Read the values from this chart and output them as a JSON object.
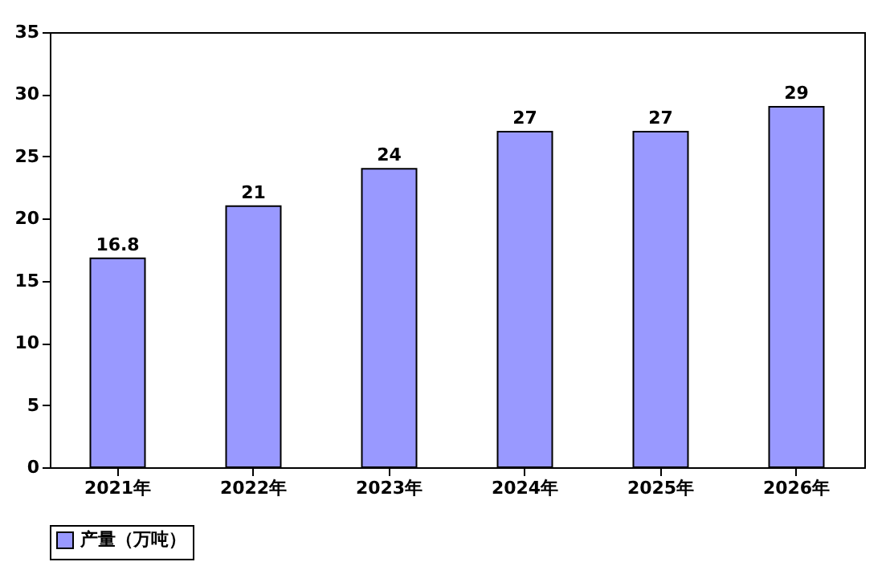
{
  "chart_data": {
    "type": "bar",
    "categories": [
      "2021年",
      "2022年",
      "2023年",
      "2024年",
      "2025年",
      "2026年"
    ],
    "series": [
      {
        "name": "产量（万吨）",
        "color": "#9999ff",
        "values": [
          16.8,
          21,
          24,
          27,
          27,
          29
        ]
      }
    ],
    "ylim": [
      0,
      35
    ],
    "yticks": [
      0,
      5,
      10,
      15,
      20,
      25,
      30,
      35
    ],
    "grid": false,
    "legend": "bottom",
    "data_labels": true
  }
}
